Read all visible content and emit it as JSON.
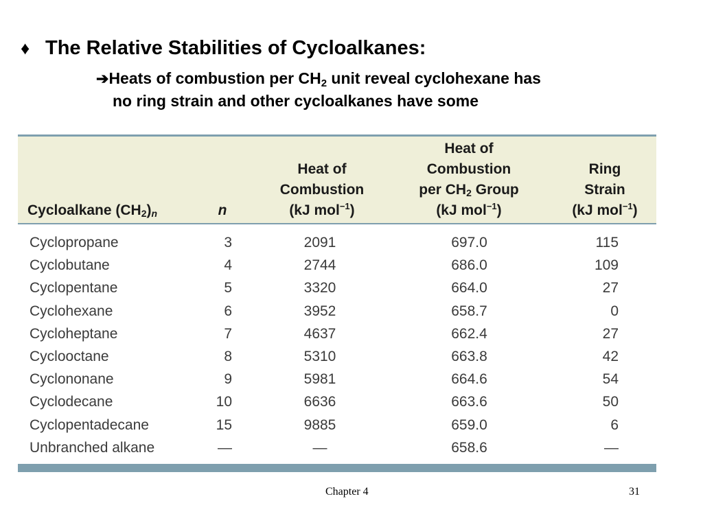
{
  "slide": {
    "bullet_glyph": "♦",
    "title": "The Relative Stabilities of Cycloalkanes:",
    "subtitle": {
      "arrow_glyph": "➔",
      "line1_before": "Heats of combustion per CH",
      "line1_sub": "2",
      "line1_after": " unit reveal cyclohexane has",
      "line2": "no ring strain and other cycloalkanes have some"
    }
  },
  "table": {
    "headers": {
      "name_prefix": "Cycloalkane (CH",
      "name_sub": "2",
      "name_suffix": ")",
      "name_italic": "n",
      "n": "n",
      "heat_line1": "Heat of",
      "heat_line2": "Combustion",
      "heat_unit_before": "(kJ mol",
      "heat_unit_sup": "−1",
      "heat_unit_after": ")",
      "per_line1": "Heat of",
      "per_line2": "Combustion",
      "per_line3_before": "per CH",
      "per_line3_sub": "2",
      "per_line3_after": " Group",
      "per_unit_before": "(kJ mol",
      "per_unit_sup": "−1",
      "per_unit_after": ")",
      "ring_line1": "Ring",
      "ring_line2": "Strain",
      "ring_unit_before": "(kJ mol",
      "ring_unit_sup": "−1",
      "ring_unit_after": ")"
    },
    "rows": [
      {
        "name": "Cyclopropane",
        "n": "3",
        "heat": "2091",
        "per_ch2": "697.0",
        "ring_strain": "115"
      },
      {
        "name": "Cyclobutane",
        "n": "4",
        "heat": "2744",
        "per_ch2": "686.0",
        "ring_strain": "109"
      },
      {
        "name": "Cyclopentane",
        "n": "5",
        "heat": "3320",
        "per_ch2": "664.0",
        "ring_strain": "27"
      },
      {
        "name": "Cyclohexane",
        "n": "6",
        "heat": "3952",
        "per_ch2": "658.7",
        "ring_strain": "0"
      },
      {
        "name": "Cycloheptane",
        "n": "7",
        "heat": "4637",
        "per_ch2": "662.4",
        "ring_strain": "27"
      },
      {
        "name": "Cyclooctane",
        "n": "8",
        "heat": "5310",
        "per_ch2": "663.8",
        "ring_strain": "42"
      },
      {
        "name": "Cyclononane",
        "n": "9",
        "heat": "5981",
        "per_ch2": "664.6",
        "ring_strain": "54"
      },
      {
        "name": "Cyclodecane",
        "n": "10",
        "heat": "6636",
        "per_ch2": "663.6",
        "ring_strain": "50"
      },
      {
        "name": "Cyclopentadecane",
        "n": "15",
        "heat": "9885",
        "per_ch2": "659.0",
        "ring_strain": "6"
      },
      {
        "name": "Unbranched alkane",
        "n": "—",
        "heat": "—",
        "per_ch2": "658.6",
        "ring_strain": "—"
      }
    ],
    "colors": {
      "header_bg": "#efefd9",
      "rule": "#7e9fae",
      "body_text": "#3a3a3a"
    }
  },
  "footer": {
    "chapter": "Chapter 4",
    "page": "31"
  }
}
